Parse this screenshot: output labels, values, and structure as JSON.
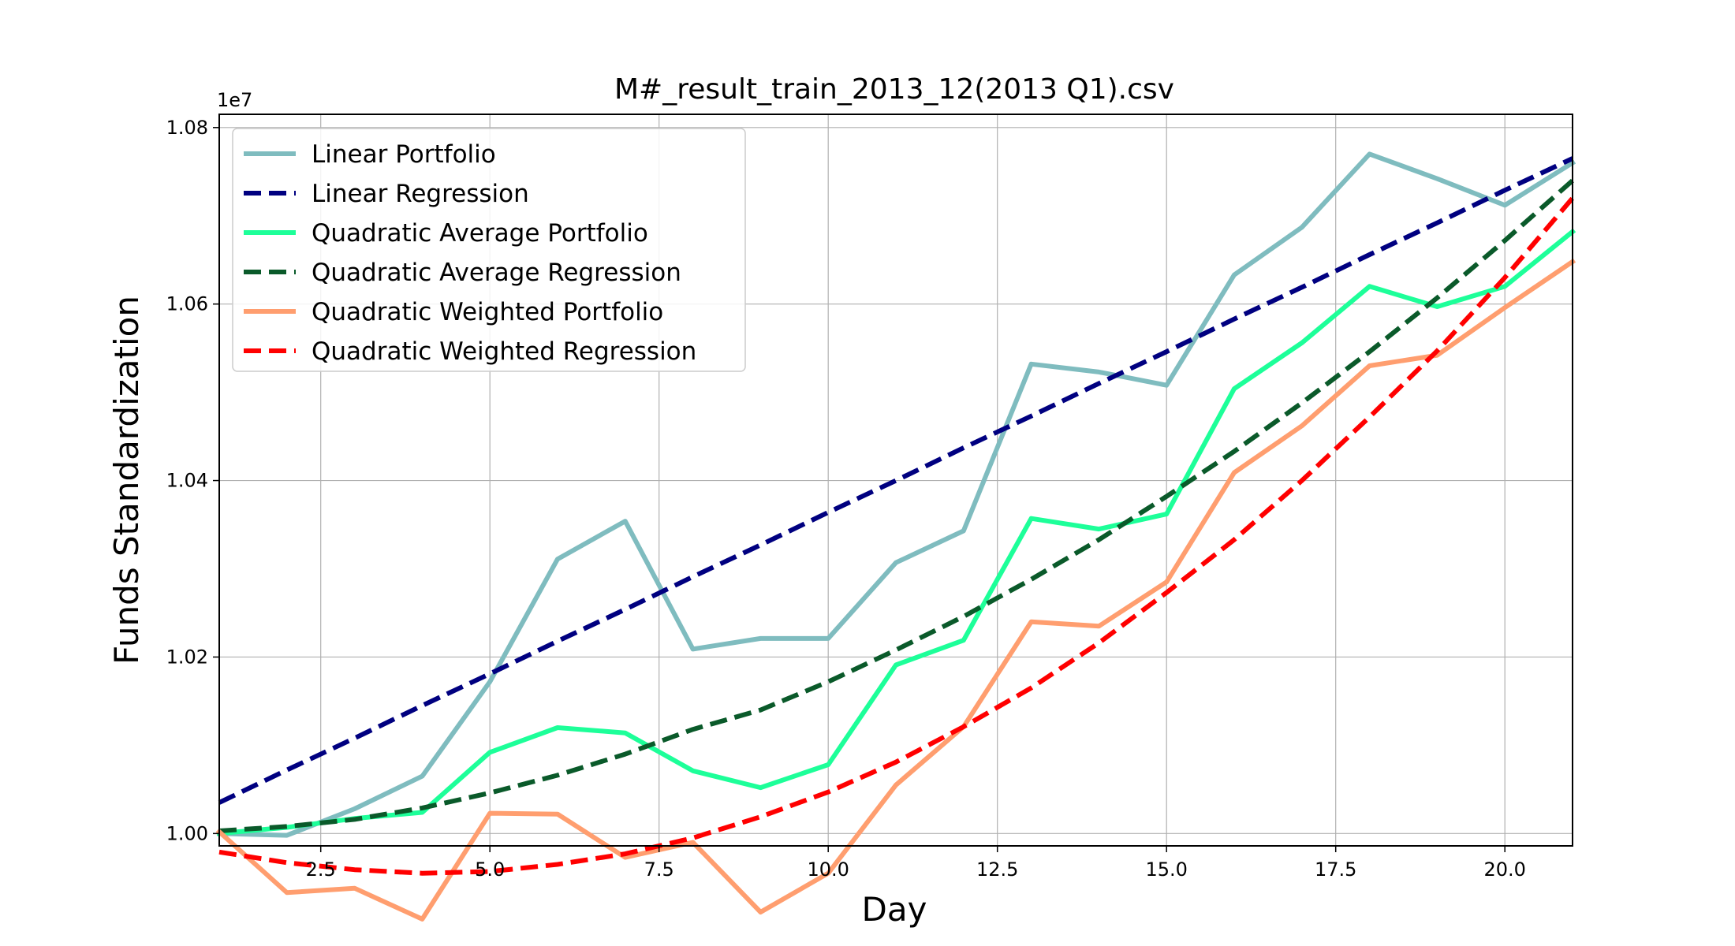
{
  "chart_data": {
    "type": "line",
    "title": "M#_result_train_2013_12(2013 Q1).csv",
    "xlabel": "Day",
    "ylabel": "Funds Standardization",
    "y_offset_label": "1e7",
    "xlim": [
      1,
      21
    ],
    "ylim": [
      0.9986,
      1.0815
    ],
    "xticks": [
      2.5,
      5.0,
      7.5,
      10.0,
      12.5,
      15.0,
      17.5,
      20.0
    ],
    "xtick_labels": [
      "2.5",
      "5.0",
      "7.5",
      "10.0",
      "12.5",
      "15.0",
      "17.5",
      "20.0"
    ],
    "yticks": [
      1.0,
      1.02,
      1.04,
      1.06,
      1.08
    ],
    "ytick_labels": [
      "1.00",
      "1.02",
      "1.04",
      "1.06",
      "1.08"
    ],
    "grid": true,
    "legend_position": "upper-left",
    "x": [
      1,
      2,
      3,
      4,
      5,
      6,
      7,
      8,
      9,
      10,
      11,
      12,
      13,
      14,
      15,
      16,
      17,
      18,
      19,
      20,
      21
    ],
    "series": [
      {
        "name": "Linear Portfolio",
        "color": "#7fbcbf",
        "style": "solid",
        "values": [
          1.0,
          0.9998,
          1.0028,
          1.0065,
          1.0172,
          1.0311,
          1.0354,
          1.0209,
          1.0221,
          1.0221,
          1.0307,
          1.0343,
          1.0532,
          1.0523,
          1.0508,
          1.0633,
          1.0687,
          1.077,
          1.0742,
          1.0712,
          1.076
        ]
      },
      {
        "name": "Linear Regression",
        "color": "#000080",
        "style": "dashed",
        "values": [
          1.0035,
          1.0072,
          1.0108,
          1.0145,
          1.0181,
          1.0218,
          1.0254,
          1.0291,
          1.0327,
          1.0364,
          1.04,
          1.0437,
          1.0473,
          1.051,
          1.0546,
          1.0583,
          1.0619,
          1.0656,
          1.0692,
          1.0729,
          1.0765
        ]
      },
      {
        "name": "Quadratic Average Portfolio",
        "color": "#1dff99",
        "style": "solid",
        "values": [
          1.0,
          1.0007,
          1.0017,
          1.0024,
          1.0092,
          1.012,
          1.0114,
          1.0071,
          1.0052,
          1.0078,
          1.0191,
          1.0219,
          1.0357,
          1.0345,
          1.0362,
          1.0504,
          1.0556,
          1.062,
          1.0597,
          1.062,
          1.0682
        ]
      },
      {
        "name": "Quadratic Average Regression",
        "color": "#0a5a2a",
        "style": "dashed",
        "values": [
          1.0003,
          1.0008,
          1.0016,
          1.0029,
          1.0046,
          1.0066,
          1.009,
          1.0118,
          1.014,
          1.0172,
          1.0208,
          1.0246,
          1.0288,
          1.0333,
          1.0382,
          1.0433,
          1.0488,
          1.0546,
          1.0607,
          1.0672,
          1.074
        ]
      },
      {
        "name": "Quadratic Weighted Portfolio",
        "color": "#ff9e6f",
        "style": "solid",
        "values": [
          1.0002,
          0.9933,
          0.9938,
          0.9903,
          1.0023,
          1.0022,
          0.9973,
          0.999,
          0.9911,
          0.9955,
          1.0055,
          1.0121,
          1.024,
          1.0235,
          1.0285,
          1.0409,
          1.0462,
          1.053,
          1.0542,
          1.0596,
          1.0648
        ]
      },
      {
        "name": "Quadratic Weighted Regression",
        "color": "#ff0000",
        "style": "dashed",
        "values": [
          0.9979,
          0.9967,
          0.9959,
          0.9955,
          0.9957,
          0.9965,
          0.9977,
          0.9995,
          1.0019,
          1.0047,
          1.0081,
          1.0121,
          1.0165,
          1.0216,
          1.0273,
          1.0333,
          1.04,
          1.0472,
          1.0547,
          1.063,
          1.072
        ]
      }
    ]
  }
}
